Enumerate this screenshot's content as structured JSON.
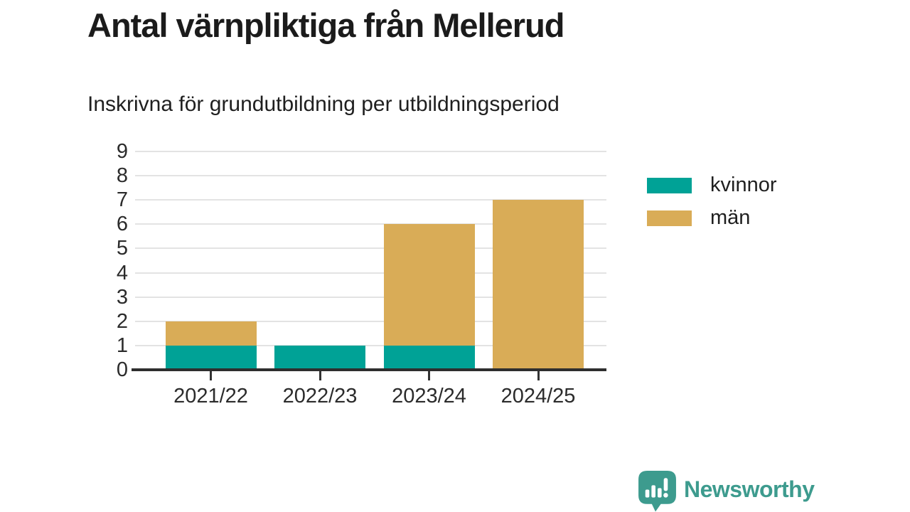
{
  "header": {
    "title": "Antal värnpliktiga från Mellerud",
    "subtitle": "Inskrivna för grundutbildning per utbildningsperiod"
  },
  "chart_data": {
    "type": "bar",
    "stacked": true,
    "title": "Antal värnpliktiga från Mellerud",
    "subtitle": "Inskrivna för grundutbildning per utbildningsperiod",
    "categories": [
      "2021/22",
      "2022/23",
      "2023/24",
      "2024/25"
    ],
    "series": [
      {
        "name": "kvinnor",
        "color": "#00a296",
        "values": [
          1,
          1,
          1,
          0
        ]
      },
      {
        "name": "män",
        "color": "#d9ac57",
        "values": [
          1,
          0,
          5,
          7
        ]
      }
    ],
    "stack_totals": [
      2,
      1,
      6,
      7
    ],
    "ylim": [
      0,
      9
    ],
    "yticks": [
      0,
      1,
      2,
      3,
      4,
      5,
      6,
      7,
      8,
      9
    ],
    "grid": true,
    "legend_position": "right",
    "xlabel": "",
    "ylabel": ""
  },
  "branding": {
    "logo_text": "Newsworthy",
    "logo_color": "#3d9b8e",
    "logo_icon": "speech-bubble-bar-chart"
  },
  "style": {
    "background": "#ffffff",
    "axis_color": "#2e2e2e",
    "gridline_color": "#e3e3e3",
    "tick_color": "#333333"
  }
}
